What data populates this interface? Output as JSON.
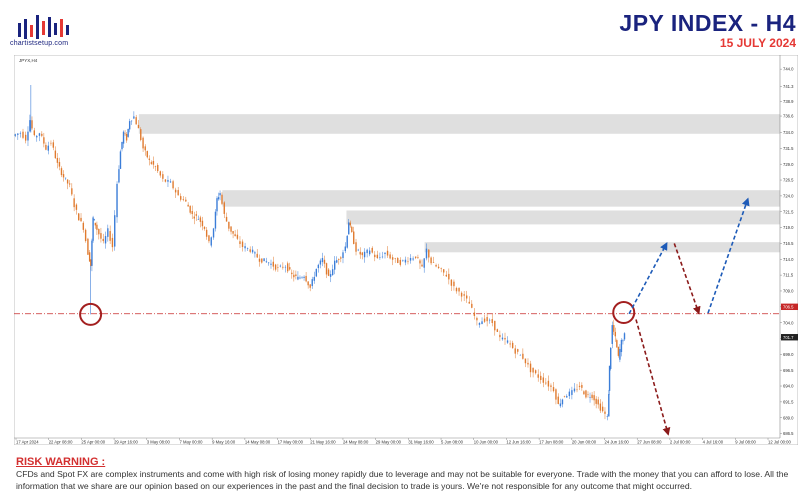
{
  "header": {
    "title": "JPY INDEX  - H4",
    "date": "15 JULY 2024",
    "logo_text": "chartistsetup.com"
  },
  "chart_panel": {
    "symbol_label": "JPYX,H4"
  },
  "chart_data": {
    "type": "candlestick",
    "timeframe": "H4",
    "ylim": [
      685.8,
      745.6
    ],
    "y_ticks": [
      "744.0",
      "741.3",
      "738.9",
      "736.6",
      "734.0",
      "731.5",
      "729.0",
      "726.5",
      "724.0",
      "721.5",
      "719.0",
      "716.5",
      "714.0",
      "711.5",
      "709.0",
      "706.5",
      "704.0",
      "701.5",
      "699.0",
      "696.5",
      "694.0",
      "691.5",
      "689.0",
      "686.5"
    ],
    "x_ticks": [
      "17 Apr 2024",
      "22 Apr 08:00",
      "25 Apr 00:00",
      "29 Apr 16:00",
      "3 May 08:00",
      "7 May 00:00",
      "9 May 16:00",
      "14 May 08:00",
      "17 May 00:00",
      "21 May 16:00",
      "24 May 08:00",
      "29 May 00:00",
      "31 May 16:00",
      "5 Jun 08:00",
      "10 Jun 00:00",
      "12 Jun 16:00",
      "17 Jun 08:00",
      "20 Jun 00:00",
      "24 Jun 16:00",
      "27 Jun 08:00",
      "2 Jul 00:00",
      "4 Jul 16:00",
      "9 Jul 08:00",
      "12 Jul 00:00"
    ],
    "price_tags": [
      {
        "value": "706.5",
        "color": "#c62828"
      },
      {
        "value": "701.7",
        "color": "#222222"
      }
    ],
    "horizontal_line": {
      "value": 705.4,
      "style": "dash-dot",
      "color": "#c62828"
    },
    "zones": [
      {
        "top": 736.9,
        "bottom": 733.8,
        "start_x": 0.163
      },
      {
        "top": 724.9,
        "bottom": 722.3,
        "start_x": 0.272
      },
      {
        "top": 721.7,
        "bottom": 719.5,
        "start_x": 0.434
      },
      {
        "top": 716.7,
        "bottom": 715.1,
        "start_x": 0.536
      }
    ],
    "circles": [
      {
        "x": 0.1,
        "y": 705.3
      },
      {
        "x": 0.796,
        "y": 705.6
      }
    ],
    "close_path": [
      [
        0.0,
        733.5
      ],
      [
        0.01,
        734.0
      ],
      [
        0.017,
        733.0
      ],
      [
        0.022,
        736.0
      ],
      [
        0.028,
        733.2
      ],
      [
        0.035,
        734.0
      ],
      [
        0.043,
        731.5
      ],
      [
        0.05,
        732.5
      ],
      [
        0.058,
        729.0
      ],
      [
        0.066,
        727.0
      ],
      [
        0.074,
        725.5
      ],
      [
        0.08,
        722.5
      ],
      [
        0.086,
        720.5
      ],
      [
        0.092,
        719.0
      ],
      [
        0.098,
        715.0
      ],
      [
        0.101,
        713.0
      ],
      [
        0.104,
        720.5
      ],
      [
        0.107,
        719.5
      ],
      [
        0.112,
        718.0
      ],
      [
        0.118,
        716.5
      ],
      [
        0.124,
        718.5
      ],
      [
        0.13,
        716.0
      ],
      [
        0.136,
        726.0
      ],
      [
        0.14,
        731.0
      ],
      [
        0.144,
        734.0
      ],
      [
        0.148,
        733.0
      ],
      [
        0.152,
        736.0
      ],
      [
        0.158,
        736.5
      ],
      [
        0.164,
        734.5
      ],
      [
        0.17,
        731.5
      ],
      [
        0.178,
        729.5
      ],
      [
        0.186,
        728.5
      ],
      [
        0.196,
        726.5
      ],
      [
        0.206,
        726.0
      ],
      [
        0.216,
        724.0
      ],
      [
        0.226,
        723.0
      ],
      [
        0.234,
        721.0
      ],
      [
        0.242,
        720.5
      ],
      [
        0.25,
        719.0
      ],
      [
        0.256,
        716.5
      ],
      [
        0.262,
        719.0
      ],
      [
        0.266,
        723.5
      ],
      [
        0.27,
        724.5
      ],
      [
        0.276,
        721.0
      ],
      [
        0.282,
        719.0
      ],
      [
        0.29,
        717.5
      ],
      [
        0.3,
        716.0
      ],
      [
        0.31,
        715.5
      ],
      [
        0.322,
        714.0
      ],
      [
        0.334,
        713.5
      ],
      [
        0.346,
        712.5
      ],
      [
        0.356,
        713.0
      ],
      [
        0.364,
        711.5
      ],
      [
        0.372,
        711.0
      ],
      [
        0.38,
        711.5
      ],
      [
        0.388,
        709.5
      ],
      [
        0.396,
        712.5
      ],
      [
        0.404,
        714.0
      ],
      [
        0.412,
        711.0
      ],
      [
        0.42,
        713.5
      ],
      [
        0.428,
        714.5
      ],
      [
        0.434,
        716.0
      ],
      [
        0.438,
        720.0
      ],
      [
        0.442,
        718.0
      ],
      [
        0.448,
        715.5
      ],
      [
        0.456,
        714.5
      ],
      [
        0.466,
        715.5
      ],
      [
        0.476,
        714.0
      ],
      [
        0.486,
        715.0
      ],
      [
        0.496,
        714.0
      ],
      [
        0.506,
        713.5
      ],
      [
        0.516,
        714.0
      ],
      [
        0.526,
        714.5
      ],
      [
        0.534,
        712.5
      ],
      [
        0.54,
        715.5
      ],
      [
        0.546,
        713.5
      ],
      [
        0.556,
        712.5
      ],
      [
        0.566,
        711.5
      ],
      [
        0.576,
        709.5
      ],
      [
        0.586,
        708.5
      ],
      [
        0.596,
        707.0
      ],
      [
        0.606,
        704.0
      ],
      [
        0.616,
        704.5
      ],
      [
        0.626,
        704.0
      ],
      [
        0.636,
        701.5
      ],
      [
        0.646,
        701.0
      ],
      [
        0.656,
        699.5
      ],
      [
        0.666,
        698.5
      ],
      [
        0.676,
        696.5
      ],
      [
        0.686,
        695.5
      ],
      [
        0.696,
        694.5
      ],
      [
        0.706,
        693.5
      ],
      [
        0.712,
        691.0
      ],
      [
        0.72,
        692.5
      ],
      [
        0.73,
        693.0
      ],
      [
        0.74,
        694.0
      ],
      [
        0.748,
        692.5
      ],
      [
        0.756,
        692.5
      ],
      [
        0.764,
        691.0
      ],
      [
        0.77,
        690.0
      ],
      [
        0.776,
        689.0
      ],
      [
        0.778,
        697.0
      ],
      [
        0.782,
        703.5
      ],
      [
        0.786,
        701.5
      ],
      [
        0.79,
        698.5
      ],
      [
        0.794,
        701.0
      ],
      [
        0.798,
        702.0
      ]
    ],
    "projections": [
      {
        "from": [
          0.803,
          705.4
        ],
        "to": [
          0.852,
          716.5
        ],
        "style": "dashed",
        "color": "#1e5bb8"
      },
      {
        "from": [
          0.862,
          716.5
        ],
        "to": [
          0.894,
          705.5
        ],
        "style": "dashed",
        "color": "#8b1a1a"
      },
      {
        "from": [
          0.906,
          705.5
        ],
        "to": [
          0.958,
          723.5
        ],
        "style": "dashed",
        "color": "#1e5bb8"
      },
      {
        "from": [
          0.812,
          704.5
        ],
        "to": [
          0.854,
          686.4
        ],
        "style": "dashed",
        "color": "#8b1a1a"
      }
    ]
  },
  "risk_warning": {
    "title": "RISK WARNING :",
    "text": "CFDs and Spot FX are complex instruments and come with high risk of losing money rapidly due to leverage and may not be suitable for everyone. Trade with the money that you can afford to lose. All the information that we share are our opinion based on our experiences in the past and the final decision to trade is yours. We're not responsible for any outcome that might occurred."
  }
}
